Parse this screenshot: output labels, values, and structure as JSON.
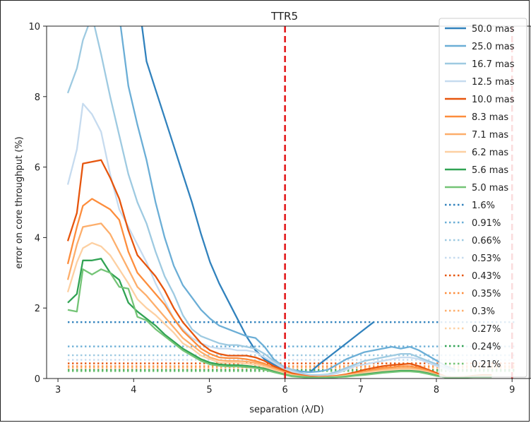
{
  "chart_data": {
    "type": "line",
    "title": "TTR5",
    "xlabel": "separation (λ/D)",
    "ylabel": "error on core throughput (%)",
    "xlim": [
      2.85,
      9.25
    ],
    "ylim": [
      0,
      10
    ],
    "xticks": [
      3,
      4,
      5,
      6,
      7,
      8,
      9
    ],
    "yticks": [
      0,
      2,
      4,
      6,
      8,
      10
    ],
    "grid": false,
    "legend_position": "right",
    "vlines": [
      {
        "x": 6,
        "color": "#e31a1c",
        "style": "dashed"
      },
      {
        "x": 9,
        "color": "#e31a1c",
        "style": "dashed"
      }
    ],
    "x": [
      3.13,
      3.25,
      3.33,
      3.45,
      3.57,
      3.69,
      3.81,
      3.93,
      4.05,
      4.17,
      4.29,
      4.41,
      4.53,
      4.65,
      4.77,
      4.89,
      5.01,
      5.13,
      5.25,
      5.37,
      5.49,
      5.61,
      5.73,
      5.85,
      5.97,
      6.09,
      6.21,
      6.33,
      6.45,
      6.57,
      6.69,
      6.81,
      6.93,
      7.05,
      7.17,
      7.29,
      7.41,
      7.53,
      7.65,
      7.77,
      7.89,
      8.01,
      8.13,
      8.25,
      8.37,
      8.49,
      8.61,
      8.73
    ],
    "series": [
      {
        "name": "50.0 mas",
        "color": "#3182bd",
        "style": "solid",
        "values": [
          null,
          null,
          null,
          null,
          null,
          null,
          null,
          null,
          11,
          9.0,
          8.2,
          7.4,
          6.6,
          5.8,
          5.0,
          4.1,
          3.3,
          2.7,
          2.2,
          1.7,
          1.2,
          0.8,
          0.55,
          0.4,
          0.3,
          0.25,
          0.2,
          0.18,
          0.4,
          0.6,
          0.8,
          1.0,
          1.2,
          1.4,
          1.6,
          null,
          null,
          null,
          null,
          null,
          null,
          null,
          null,
          null,
          null,
          null,
          null,
          null
        ]
      },
      {
        "name": "25.0 mas",
        "color": "#6baed6",
        "style": "solid",
        "values": [
          null,
          null,
          null,
          null,
          null,
          null,
          10.3,
          8.3,
          7.2,
          6.2,
          5.0,
          4.0,
          3.2,
          2.65,
          2.3,
          1.95,
          1.7,
          1.5,
          1.4,
          1.3,
          1.2,
          1.15,
          0.9,
          0.55,
          0.35,
          0.25,
          0.2,
          0.18,
          0.2,
          0.25,
          0.4,
          0.55,
          0.65,
          0.75,
          0.8,
          0.85,
          0.9,
          0.85,
          0.9,
          0.8,
          0.65,
          0.5,
          0.35,
          0.25,
          null,
          null,
          null,
          null
        ]
      },
      {
        "name": "16.7 mas",
        "color": "#9ecae1",
        "style": "solid",
        "values": [
          8.1,
          8.8,
          9.6,
          10.3,
          9.2,
          8.0,
          6.9,
          5.8,
          5.0,
          4.4,
          3.6,
          2.9,
          2.4,
          1.8,
          1.4,
          1.2,
          1.1,
          1.0,
          0.95,
          0.95,
          0.9,
          0.85,
          0.7,
          0.5,
          0.35,
          0.25,
          0.15,
          0.1,
          0.1,
          0.12,
          0.2,
          0.3,
          0.4,
          0.5,
          0.55,
          0.6,
          0.65,
          0.7,
          0.7,
          0.6,
          0.5,
          0.4,
          0.3,
          0.2,
          null,
          null,
          null,
          null
        ]
      },
      {
        "name": "12.5 mas",
        "color": "#c6dbef",
        "style": "solid",
        "values": [
          5.5,
          6.5,
          7.8,
          7.5,
          7.0,
          5.8,
          4.8,
          4.3,
          3.8,
          3.3,
          2.7,
          2.2,
          1.7,
          1.4,
          1.15,
          1.0,
          0.9,
          0.85,
          0.85,
          0.8,
          0.8,
          0.75,
          0.6,
          0.45,
          0.3,
          0.2,
          0.12,
          0.08,
          0.08,
          0.1,
          0.15,
          0.25,
          0.35,
          0.4,
          0.45,
          0.5,
          0.55,
          0.6,
          0.6,
          0.55,
          0.45,
          0.35,
          0.25,
          0.18,
          null,
          null,
          null,
          null
        ]
      },
      {
        "name": "10.0 mas",
        "color": "#e6550d",
        "style": "solid",
        "values": [
          3.9,
          4.7,
          6.1,
          6.15,
          6.2,
          5.7,
          5.1,
          4.2,
          3.5,
          3.2,
          2.9,
          2.5,
          2.0,
          1.6,
          1.3,
          1.0,
          0.8,
          0.7,
          0.65,
          0.65,
          0.65,
          0.6,
          0.5,
          0.35,
          0.25,
          0.15,
          0.1,
          0.06,
          0.05,
          0.06,
          0.08,
          0.12,
          0.18,
          0.25,
          0.3,
          0.35,
          0.38,
          0.4,
          0.42,
          0.35,
          0.25,
          0.15,
          0.05,
          0.03,
          0.05,
          0.08,
          0.1,
          0.1
        ]
      },
      {
        "name": "8.3 mas",
        "color": "#fd8d3c",
        "style": "solid",
        "values": [
          3.25,
          4.3,
          4.9,
          5.1,
          4.95,
          4.8,
          4.5,
          3.6,
          3.0,
          2.7,
          2.4,
          2.1,
          1.7,
          1.35,
          1.1,
          0.85,
          0.7,
          0.6,
          0.58,
          0.58,
          0.55,
          0.5,
          0.42,
          0.3,
          0.2,
          0.12,
          0.08,
          0.05,
          0.04,
          0.05,
          0.07,
          0.1,
          0.15,
          0.2,
          0.25,
          0.3,
          0.32,
          0.35,
          0.35,
          0.3,
          0.22,
          0.12,
          0.05,
          0.03,
          0.05,
          0.07,
          0.08,
          0.08
        ]
      },
      {
        "name": "7.1 mas",
        "color": "#fdae6b",
        "style": "solid",
        "values": [
          2.8,
          3.8,
          4.3,
          4.35,
          4.4,
          4.1,
          3.6,
          3.1,
          2.6,
          2.35,
          2.05,
          1.75,
          1.45,
          1.15,
          0.95,
          0.75,
          0.6,
          0.52,
          0.5,
          0.5,
          0.48,
          0.45,
          0.38,
          0.28,
          0.18,
          0.1,
          0.07,
          0.04,
          0.03,
          0.04,
          0.06,
          0.09,
          0.13,
          0.18,
          0.22,
          0.26,
          0.28,
          0.3,
          0.3,
          0.26,
          0.2,
          0.1,
          0.04,
          0.03,
          0.04,
          0.06,
          0.07,
          0.07
        ]
      },
      {
        "name": "6.2 mas",
        "color": "#fdd0a2",
        "style": "solid",
        "values": [
          2.45,
          3.3,
          3.7,
          3.85,
          3.75,
          3.5,
          3.1,
          2.7,
          2.25,
          2.0,
          1.8,
          1.55,
          1.3,
          1.0,
          0.85,
          0.65,
          0.55,
          0.45,
          0.45,
          0.45,
          0.42,
          0.4,
          0.33,
          0.24,
          0.16,
          0.09,
          0.06,
          0.03,
          0.03,
          0.04,
          0.05,
          0.08,
          0.11,
          0.15,
          0.19,
          0.22,
          0.24,
          0.26,
          0.26,
          0.23,
          0.17,
          0.09,
          0.04,
          0.03,
          0.04,
          0.05,
          0.06,
          0.06
        ]
      },
      {
        "name": "5.6 mas",
        "color": "#31a354",
        "style": "solid",
        "values": [
          2.15,
          2.4,
          3.35,
          3.35,
          3.4,
          3.0,
          2.8,
          2.15,
          1.9,
          1.7,
          1.5,
          1.25,
          1.05,
          0.85,
          0.7,
          0.55,
          0.45,
          0.4,
          0.38,
          0.38,
          0.36,
          0.33,
          0.28,
          0.2,
          0.13,
          0.07,
          0.05,
          0.03,
          0.02,
          0.03,
          0.04,
          0.06,
          0.09,
          0.12,
          0.15,
          0.18,
          0.2,
          0.22,
          0.22,
          0.2,
          0.15,
          0.08,
          0.03,
          0.02,
          0.03,
          0.05,
          0.05,
          0.05
        ]
      },
      {
        "name": "5.0 mas",
        "color": "#74c476",
        "style": "solid",
        "values": [
          1.95,
          1.9,
          3.1,
          2.95,
          3.1,
          3.0,
          2.6,
          2.55,
          1.75,
          1.65,
          1.4,
          1.2,
          1.0,
          0.8,
          0.65,
          0.5,
          0.4,
          0.36,
          0.34,
          0.34,
          0.32,
          0.3,
          0.25,
          0.18,
          0.12,
          0.06,
          0.04,
          0.02,
          0.02,
          0.03,
          0.04,
          0.05,
          0.08,
          0.1,
          0.13,
          0.16,
          0.18,
          0.2,
          0.2,
          0.18,
          0.13,
          0.07,
          0.03,
          0.02,
          0.03,
          0.04,
          0.04,
          0.04
        ]
      },
      {
        "name": "1.6%",
        "color": "#3182bd",
        "style": "dotted",
        "hline": 1.6
      },
      {
        "name": "0.91%",
        "color": "#6baed6",
        "style": "dotted",
        "hline": 0.91
      },
      {
        "name": "0.66%",
        "color": "#9ecae1",
        "style": "dotted",
        "hline": 0.66
      },
      {
        "name": "0.53%",
        "color": "#c6dbef",
        "style": "dotted",
        "hline": 0.53
      },
      {
        "name": "0.43%",
        "color": "#e6550d",
        "style": "dotted",
        "hline": 0.43
      },
      {
        "name": "0.35%",
        "color": "#fd8d3c",
        "style": "dotted",
        "hline": 0.35
      },
      {
        "name": "0.3%",
        "color": "#fdae6b",
        "style": "dotted",
        "hline": 0.3
      },
      {
        "name": "0.27%",
        "color": "#fdd0a2",
        "style": "dotted",
        "hline": 0.27
      },
      {
        "name": "0.24%",
        "color": "#31a354",
        "style": "dotted",
        "hline": 0.24
      },
      {
        "name": "0.21%",
        "color": "#74c476",
        "style": "dotted",
        "hline": 0.21
      }
    ]
  }
}
